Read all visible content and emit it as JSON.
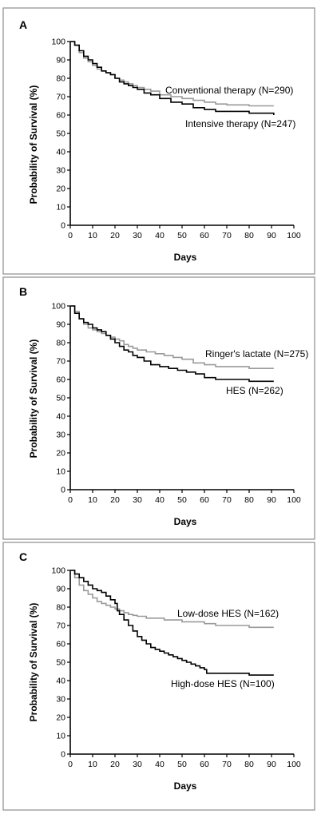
{
  "chart_data": [
    {
      "type": "line",
      "panel_label": "A",
      "xlabel": "Days",
      "ylabel": "Probability of Survival (%)",
      "xlim": [
        0,
        100
      ],
      "ylim": [
        0,
        100
      ],
      "x_ticks": [
        0,
        10,
        20,
        30,
        40,
        50,
        60,
        70,
        80,
        90,
        100
      ],
      "y_ticks": [
        0,
        10,
        20,
        30,
        40,
        50,
        60,
        70,
        80,
        90,
        100
      ],
      "grid": false,
      "series": [
        {
          "name": "Conventional therapy (N=290)",
          "color": "#9a9a9a",
          "points": [
            [
              0,
              100
            ],
            [
              2,
              98
            ],
            [
              4,
              94
            ],
            [
              6,
              91
            ],
            [
              8,
              89
            ],
            [
              10,
              87
            ],
            [
              12,
              85
            ],
            [
              14,
              84
            ],
            [
              16,
              83
            ],
            [
              18,
              82
            ],
            [
              20,
              80
            ],
            [
              22,
              79
            ],
            [
              24,
              78
            ],
            [
              26,
              77
            ],
            [
              28,
              76
            ],
            [
              30,
              75
            ],
            [
              33,
              74
            ],
            [
              36,
              73
            ],
            [
              40,
              71
            ],
            [
              45,
              70
            ],
            [
              50,
              69
            ],
            [
              55,
              68
            ],
            [
              60,
              67
            ],
            [
              65,
              66
            ],
            [
              70,
              65.5
            ],
            [
              80,
              65
            ],
            [
              91,
              65
            ]
          ]
        },
        {
          "name": "Intensive therapy (N=247)",
          "color": "#000000",
          "points": [
            [
              0,
              100
            ],
            [
              2,
              98
            ],
            [
              4,
              95
            ],
            [
              6,
              92
            ],
            [
              8,
              90
            ],
            [
              10,
              88
            ],
            [
              12,
              86
            ],
            [
              14,
              84
            ],
            [
              16,
              83
            ],
            [
              18,
              82
            ],
            [
              20,
              80
            ],
            [
              22,
              78
            ],
            [
              24,
              77
            ],
            [
              26,
              76
            ],
            [
              28,
              75
            ],
            [
              30,
              74
            ],
            [
              33,
              72
            ],
            [
              36,
              71
            ],
            [
              40,
              69
            ],
            [
              45,
              67
            ],
            [
              50,
              66
            ],
            [
              55,
              64
            ],
            [
              60,
              63
            ],
            [
              65,
              62
            ],
            [
              70,
              62
            ],
            [
              80,
              61
            ],
            [
              91,
              60
            ]
          ]
        }
      ]
    },
    {
      "type": "line",
      "panel_label": "B",
      "xlabel": "Days",
      "ylabel": "Probability of Survival (%)",
      "xlim": [
        0,
        100
      ],
      "ylim": [
        0,
        100
      ],
      "x_ticks": [
        0,
        10,
        20,
        30,
        40,
        50,
        60,
        70,
        80,
        90,
        100
      ],
      "y_ticks": [
        0,
        10,
        20,
        30,
        40,
        50,
        60,
        70,
        80,
        90,
        100
      ],
      "grid": false,
      "series": [
        {
          "name": "Ringer's lactate (N=275)",
          "color": "#9a9a9a",
          "points": [
            [
              0,
              100
            ],
            [
              2,
              97
            ],
            [
              4,
              93
            ],
            [
              6,
              90
            ],
            [
              8,
              88
            ],
            [
              10,
              87
            ],
            [
              12,
              86
            ],
            [
              14,
              85
            ],
            [
              16,
              84
            ],
            [
              18,
              83
            ],
            [
              20,
              82
            ],
            [
              22,
              81
            ],
            [
              24,
              79
            ],
            [
              26,
              78
            ],
            [
              28,
              77
            ],
            [
              30,
              76
            ],
            [
              34,
              75
            ],
            [
              38,
              74
            ],
            [
              42,
              73
            ],
            [
              46,
              72
            ],
            [
              50,
              71
            ],
            [
              55,
              69
            ],
            [
              60,
              68
            ],
            [
              65,
              67
            ],
            [
              70,
              67
            ],
            [
              80,
              66
            ],
            [
              91,
              66
            ]
          ]
        },
        {
          "name": "HES (N=262)",
          "color": "#000000",
          "points": [
            [
              0,
              100
            ],
            [
              2,
              96
            ],
            [
              4,
              93
            ],
            [
              6,
              91
            ],
            [
              8,
              90
            ],
            [
              10,
              88
            ],
            [
              12,
              87
            ],
            [
              14,
              86
            ],
            [
              16,
              84
            ],
            [
              18,
              82
            ],
            [
              20,
              80
            ],
            [
              22,
              78
            ],
            [
              24,
              76
            ],
            [
              26,
              75
            ],
            [
              28,
              73
            ],
            [
              30,
              72
            ],
            [
              33,
              70
            ],
            [
              36,
              68
            ],
            [
              40,
              67
            ],
            [
              44,
              66
            ],
            [
              48,
              65
            ],
            [
              52,
              64
            ],
            [
              56,
              63
            ],
            [
              60,
              61
            ],
            [
              65,
              60
            ],
            [
              70,
              60
            ],
            [
              80,
              59
            ],
            [
              91,
              59
            ]
          ]
        }
      ]
    },
    {
      "type": "line",
      "panel_label": "C",
      "xlabel": "Days",
      "ylabel": "Probability of Survival (%)",
      "xlim": [
        0,
        100
      ],
      "ylim": [
        0,
        100
      ],
      "x_ticks": [
        0,
        10,
        20,
        30,
        40,
        50,
        60,
        70,
        80,
        90,
        100
      ],
      "y_ticks": [
        0,
        10,
        20,
        30,
        40,
        50,
        60,
        70,
        80,
        90,
        100
      ],
      "grid": false,
      "series": [
        {
          "name": "Low-dose HES (N=162)",
          "color": "#9a9a9a",
          "points": [
            [
              0,
              100
            ],
            [
              2,
              96
            ],
            [
              4,
              92
            ],
            [
              6,
              89
            ],
            [
              8,
              87
            ],
            [
              10,
              85
            ],
            [
              12,
              83
            ],
            [
              14,
              82
            ],
            [
              16,
              81
            ],
            [
              18,
              80
            ],
            [
              20,
              79
            ],
            [
              22,
              78
            ],
            [
              24,
              77
            ],
            [
              26,
              76
            ],
            [
              28,
              75.5
            ],
            [
              30,
              75
            ],
            [
              34,
              74
            ],
            [
              38,
              74
            ],
            [
              42,
              73
            ],
            [
              46,
              73
            ],
            [
              50,
              72
            ],
            [
              55,
              72
            ],
            [
              60,
              71
            ],
            [
              65,
              70
            ],
            [
              70,
              70
            ],
            [
              80,
              69
            ],
            [
              91,
              69
            ]
          ]
        },
        {
          "name": "High-dose HES (N=100)",
          "color": "#000000",
          "points": [
            [
              0,
              100
            ],
            [
              2,
              98
            ],
            [
              4,
              96
            ],
            [
              6,
              94
            ],
            [
              8,
              92
            ],
            [
              10,
              90
            ],
            [
              12,
              89
            ],
            [
              14,
              88
            ],
            [
              16,
              86
            ],
            [
              18,
              84
            ],
            [
              20,
              82
            ],
            [
              21,
              78
            ],
            [
              22,
              76
            ],
            [
              24,
              73
            ],
            [
              26,
              70
            ],
            [
              28,
              67
            ],
            [
              30,
              64
            ],
            [
              32,
              62
            ],
            [
              34,
              60
            ],
            [
              36,
              58
            ],
            [
              38,
              57
            ],
            [
              40,
              56
            ],
            [
              42,
              55
            ],
            [
              44,
              54
            ],
            [
              46,
              53
            ],
            [
              48,
              52
            ],
            [
              50,
              51
            ],
            [
              52,
              50
            ],
            [
              54,
              49
            ],
            [
              56,
              48
            ],
            [
              58,
              47
            ],
            [
              60,
              46
            ],
            [
              61,
              44
            ],
            [
              70,
              44
            ],
            [
              79,
              44
            ],
            [
              80,
              43
            ],
            [
              91,
              43
            ]
          ]
        }
      ]
    }
  ]
}
